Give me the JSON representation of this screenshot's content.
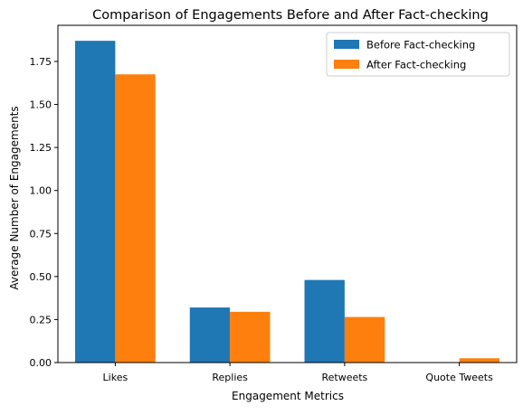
{
  "chart_data": {
    "type": "bar",
    "title": "Comparison of Engagements Before and After Fact-checking",
    "xlabel": "Engagement Metrics",
    "ylabel": "Average Number of Engagements",
    "categories": [
      "Likes",
      "Replies",
      "Retweets",
      "Quote Tweets"
    ],
    "series": [
      {
        "name": "Before Fact-checking",
        "color": "#1f77b4",
        "values": [
          1.87,
          0.32,
          0.48,
          0.0
        ]
      },
      {
        "name": "After Fact-checking",
        "color": "#ff7f0e",
        "values": [
          1.675,
          0.295,
          0.265,
          0.025
        ]
      }
    ],
    "ylim": [
      0,
      1.96
    ],
    "yticks": [
      "0.00",
      "0.25",
      "0.50",
      "0.75",
      "1.00",
      "1.25",
      "1.50",
      "1.75"
    ],
    "grid": false,
    "legend_position": "top-right"
  }
}
